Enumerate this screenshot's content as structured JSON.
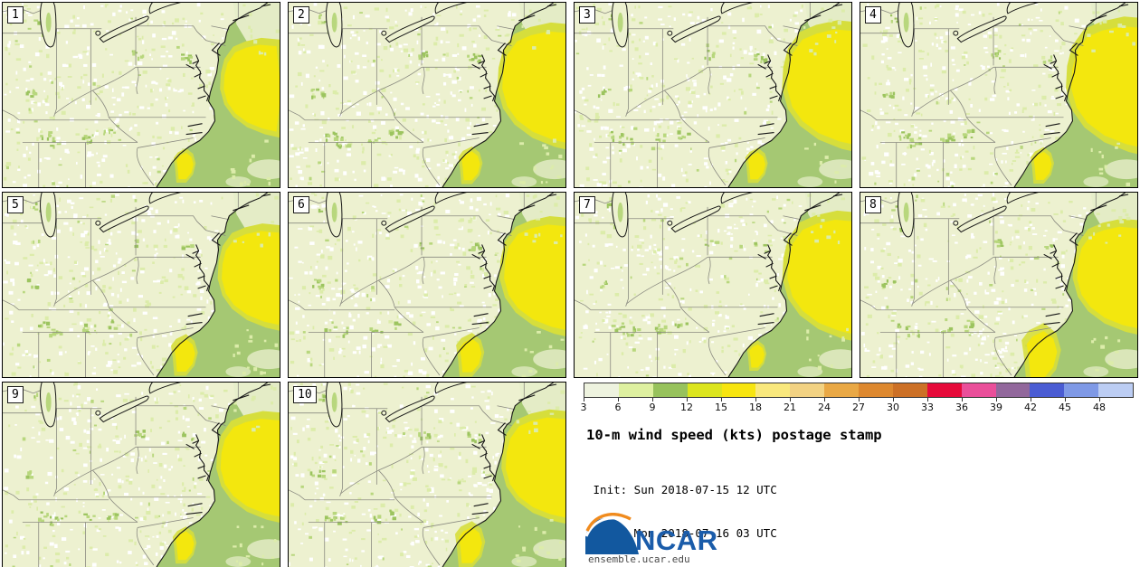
{
  "panels": [
    {
      "label": "1"
    },
    {
      "label": "2"
    },
    {
      "label": "3"
    },
    {
      "label": "4"
    },
    {
      "label": "5"
    },
    {
      "label": "6"
    },
    {
      "label": "7"
    },
    {
      "label": "8"
    },
    {
      "label": "9"
    },
    {
      "label": "10"
    }
  ],
  "colorbar": {
    "tick_labels": [
      "3",
      "6",
      "9",
      "12",
      "15",
      "18",
      "21",
      "24",
      "27",
      "30",
      "33",
      "36",
      "39",
      "42",
      "45",
      "48"
    ],
    "segment_colors": [
      "#eef3df",
      "#def0a0",
      "#97c25c",
      "#dce51e",
      "#f7e510",
      "#f9e87d",
      "#f2d283",
      "#e9a845",
      "#dd882f",
      "#cc7026",
      "#e60a3a",
      "#ea4f9a",
      "#92689c",
      "#4a5cd3",
      "#7f99e6",
      "#bccdf3"
    ]
  },
  "header": {
    "title": "10-m wind speed (kts) postage stamp",
    "init_line": " Init: Sun 2018-07-15 12 UTC",
    "valid_line": "Valid: Mon 2018-07-16 03 UTC"
  },
  "logo": {
    "text": "NCAR",
    "url": "ensemble.ucar.edu",
    "blue": "#12589f",
    "text_blue": "#1a5caa",
    "orange": "#f08b1e"
  },
  "map_colors": {
    "land": "#edf1d0",
    "speckle_white": "#ffffff",
    "speckle_light": "#dcecaa",
    "speckle_mid": "#b8d77d",
    "speckle_dark": "#9cc45f",
    "ocean_green": "#a5c873",
    "ocean_pale": "#e7eeca",
    "chartreuse": "#d6de3c",
    "yellow": "#f3e70e",
    "state_line": "#8a8a80",
    "coast": "#151515"
  }
}
